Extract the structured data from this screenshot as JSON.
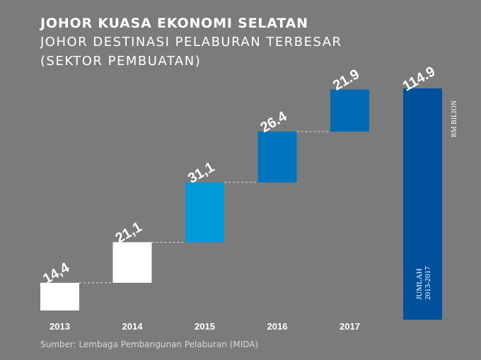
{
  "header": {
    "title": "JOHOR KUASA EKONOMI SELATAN",
    "subtitle_line1": "JOHOR DESTINASI PELABURAN TERBESAR",
    "subtitle_line2": "(SEKTOR PEMBUATAN)"
  },
  "source": "Sumber: Lembaga Pembangunan Pelaburan (MIDA)",
  "chart_data": {
    "type": "bar",
    "subtype": "waterfall",
    "categories": [
      "2013",
      "2014",
      "2015",
      "2016",
      "2017"
    ],
    "values": [
      14.4,
      21.1,
      31.1,
      26.4,
      21.9
    ],
    "value_labels": [
      "14,4",
      "21,1",
      "31,1",
      "26.4",
      "21.9"
    ],
    "bar_colors": [
      "#ffffff",
      "#ffffff",
      "#0099d8",
      "#0074bf",
      "#0069b4"
    ],
    "total": {
      "value": 114.9,
      "value_label": "114.9",
      "label_line1": "JUMLAH",
      "label_line2": "2013-2017",
      "color": "#00509c"
    },
    "unit_label": "RM BILION",
    "connector_lines": "dashed",
    "grid": false
  }
}
